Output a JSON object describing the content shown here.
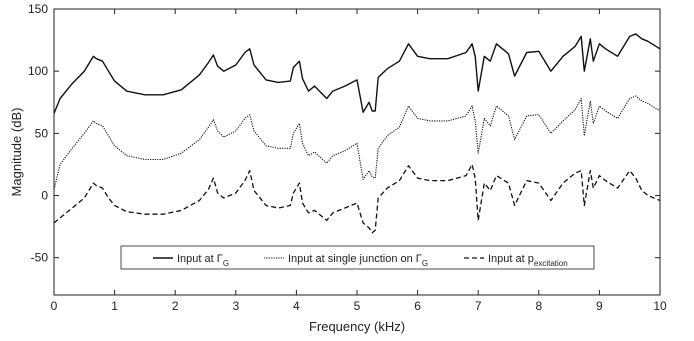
{
  "chart_data": {
    "type": "line",
    "title": "",
    "xlabel": "Frequency (kHz)",
    "ylabel": "Magnitude (dB)",
    "xlim": [
      0,
      10
    ],
    "ylim": [
      -80,
      150
    ],
    "xticks": [
      "0",
      "1",
      "2",
      "3",
      "4",
      "5",
      "6",
      "7",
      "8",
      "9",
      "10"
    ],
    "yticks": [
      "150",
      "100",
      "50",
      "0",
      "-50"
    ],
    "grid": false,
    "legend_position": "bottom-center",
    "series": [
      {
        "name": "Input at ΓG",
        "legend_main": "Input at Γ",
        "legend_sub": "G",
        "style": "solid",
        "x": [
          0,
          0.1,
          0.3,
          0.5,
          0.65,
          0.7,
          0.8,
          0.9,
          1.0,
          1.2,
          1.5,
          1.8,
          2.1,
          2.4,
          2.55,
          2.63,
          2.7,
          2.8,
          3.0,
          3.15,
          3.23,
          3.3,
          3.5,
          3.7,
          3.9,
          3.95,
          4.05,
          4.1,
          4.2,
          4.3,
          4.5,
          4.6,
          4.8,
          5.0,
          5.1,
          5.2,
          5.25,
          5.3,
          5.35,
          5.5,
          5.7,
          5.85,
          6.0,
          6.2,
          6.5,
          6.8,
          6.9,
          6.95,
          7.0,
          7.1,
          7.2,
          7.3,
          7.5,
          7.6,
          7.8,
          8.0,
          8.2,
          8.4,
          8.6,
          8.7,
          8.75,
          8.85,
          8.9,
          9.0,
          9.1,
          9.3,
          9.5,
          9.6,
          9.7,
          9.8,
          10.0
        ],
        "values": [
          66,
          78,
          90,
          100,
          112,
          110,
          108,
          100,
          92,
          84,
          81,
          81,
          85,
          97,
          107,
          113,
          104,
          100,
          105,
          115,
          118,
          105,
          93,
          91,
          92,
          103,
          108,
          94,
          84,
          88,
          78,
          84,
          88,
          93,
          67,
          75,
          68,
          68,
          95,
          102,
          108,
          122,
          112,
          110,
          110,
          115,
          122,
          112,
          84,
          112,
          108,
          122,
          114,
          96,
          115,
          116,
          100,
          112,
          120,
          128,
          100,
          126,
          108,
          122,
          118,
          112,
          128,
          130,
          126,
          124,
          118
        ]
      },
      {
        "name": "Input at single junction on ΓG",
        "legend_main": "Input at single junction on Γ",
        "legend_sub": "G",
        "style": "dotted",
        "x": [
          0,
          0.1,
          0.3,
          0.5,
          0.65,
          0.7,
          0.8,
          0.9,
          1.0,
          1.2,
          1.5,
          1.8,
          2.1,
          2.4,
          2.55,
          2.63,
          2.7,
          2.8,
          3.0,
          3.15,
          3.23,
          3.3,
          3.5,
          3.7,
          3.9,
          3.95,
          4.05,
          4.1,
          4.2,
          4.3,
          4.5,
          4.6,
          4.8,
          5.0,
          5.1,
          5.2,
          5.25,
          5.3,
          5.35,
          5.5,
          5.7,
          5.85,
          6.0,
          6.2,
          6.5,
          6.8,
          6.9,
          6.95,
          7.0,
          7.1,
          7.2,
          7.3,
          7.5,
          7.6,
          7.8,
          8.0,
          8.2,
          8.4,
          8.6,
          8.7,
          8.75,
          8.85,
          8.9,
          9.0,
          9.1,
          9.3,
          9.5,
          9.6,
          9.7,
          9.8,
          10.0
        ],
        "values": [
          5,
          25,
          38,
          50,
          60,
          58,
          56,
          48,
          40,
          32,
          29,
          29,
          34,
          45,
          55,
          61,
          52,
          47,
          52,
          62,
          65,
          52,
          40,
          38,
          38,
          50,
          58,
          42,
          32,
          35,
          26,
          32,
          36,
          42,
          13,
          20,
          15,
          14,
          38,
          48,
          55,
          72,
          62,
          60,
          60,
          64,
          72,
          60,
          34,
          62,
          56,
          72,
          64,
          45,
          64,
          65,
          50,
          60,
          69,
          78,
          48,
          76,
          58,
          72,
          68,
          62,
          78,
          80,
          76,
          74,
          68
        ]
      },
      {
        "name": "Input at pexcitation",
        "legend_main": "Input at p",
        "legend_sub": "excitation",
        "style": "dashed",
        "x": [
          0,
          0.1,
          0.3,
          0.5,
          0.65,
          0.7,
          0.8,
          0.9,
          1.0,
          1.2,
          1.5,
          1.8,
          2.1,
          2.4,
          2.55,
          2.63,
          2.7,
          2.8,
          3.0,
          3.15,
          3.23,
          3.3,
          3.5,
          3.7,
          3.9,
          3.95,
          4.05,
          4.1,
          4.2,
          4.3,
          4.5,
          4.6,
          4.8,
          5.0,
          5.1,
          5.2,
          5.25,
          5.3,
          5.35,
          5.5,
          5.7,
          5.85,
          6.0,
          6.2,
          6.5,
          6.8,
          6.9,
          6.95,
          7.0,
          7.1,
          7.2,
          7.3,
          7.5,
          7.6,
          7.8,
          8.0,
          8.2,
          8.4,
          8.6,
          8.7,
          8.75,
          8.85,
          8.9,
          9.0,
          9.1,
          9.3,
          9.5,
          9.6,
          9.7,
          9.8,
          10.0
        ],
        "values": [
          -22,
          -18,
          -10,
          -2,
          10,
          8,
          6,
          -2,
          -8,
          -13,
          -15,
          -15,
          -12,
          -4,
          5,
          14,
          2,
          -2,
          2,
          12,
          20,
          4,
          -8,
          -10,
          -8,
          2,
          10,
          -6,
          -14,
          -12,
          -20,
          -14,
          -10,
          -6,
          -22,
          -26,
          -30,
          -28,
          -2,
          6,
          12,
          24,
          14,
          12,
          12,
          16,
          25,
          14,
          -20,
          10,
          4,
          16,
          10,
          -8,
          12,
          10,
          -4,
          10,
          18,
          20,
          -8,
          20,
          6,
          16,
          12,
          6,
          20,
          14,
          4,
          0,
          -4
        ]
      }
    ]
  }
}
